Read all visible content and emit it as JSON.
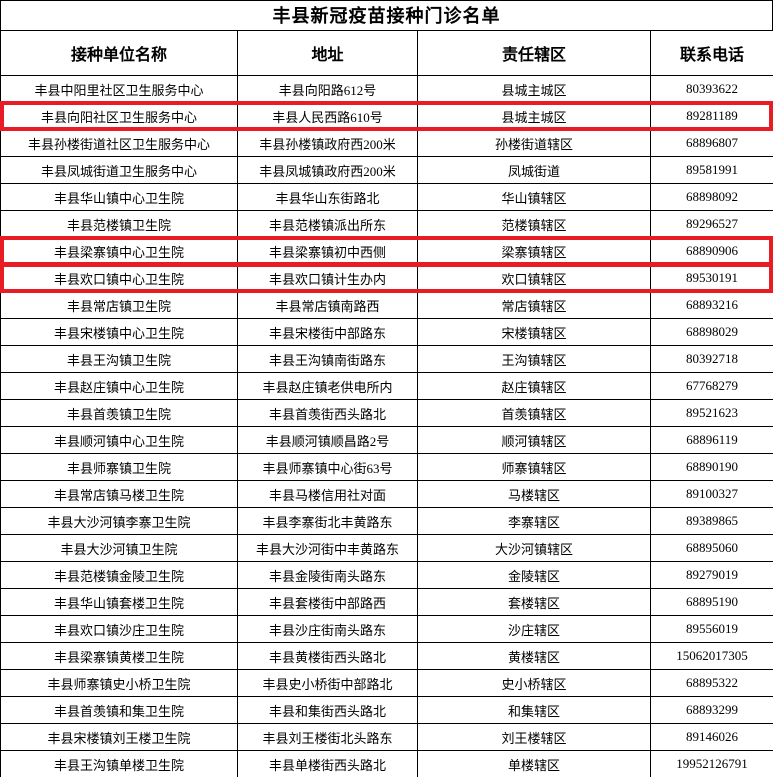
{
  "page": {
    "title": "丰县新冠疫苗接种门诊名单"
  },
  "table": {
    "highlight_color": "#e81c24",
    "columns": [
      "接种单位名称",
      "地址",
      "责任辖区",
      "联系电话"
    ],
    "rows": [
      {
        "unit": "丰县中阳里社区卫生服务中心",
        "address": "丰县向阳路612号",
        "district": "县城主城区",
        "phone": "80393622",
        "highlighted": false
      },
      {
        "unit": "丰县向阳社区卫生服务中心",
        "address": "丰县人民西路610号",
        "district": "县城主城区",
        "phone": "89281189",
        "highlighted": true
      },
      {
        "unit": "丰县孙楼街道社区卫生服务中心",
        "address": "丰县孙楼镇政府西200米",
        "district": "孙楼街道辖区",
        "phone": "68896807",
        "highlighted": false
      },
      {
        "unit": "丰县凤城街道卫生服务中心",
        "address": "丰县凤城镇政府西200米",
        "district": "凤城街道",
        "phone": "89581991",
        "highlighted": false
      },
      {
        "unit": "丰县华山镇中心卫生院",
        "address": "丰县华山东街路北",
        "district": "华山镇辖区",
        "phone": "68898092",
        "highlighted": false
      },
      {
        "unit": "丰县范楼镇卫生院",
        "address": "丰县范楼镇派出所东",
        "district": "范楼镇辖区",
        "phone": "89296527",
        "highlighted": false
      },
      {
        "unit": "丰县梁寨镇中心卫生院",
        "address": "丰县梁寨镇初中西侧",
        "district": "梁寨镇辖区",
        "phone": "68890906",
        "highlighted": true
      },
      {
        "unit": "丰县欢口镇中心卫生院",
        "address": "丰县欢口镇计生办内",
        "district": "欢口镇辖区",
        "phone": "89530191",
        "highlighted": true
      },
      {
        "unit": "丰县常店镇卫生院",
        "address": "丰县常店镇南路西",
        "district": "常店镇辖区",
        "phone": "68893216",
        "highlighted": false
      },
      {
        "unit": "丰县宋楼镇中心卫生院",
        "address": "丰县宋楼街中部路东",
        "district": "宋楼镇辖区",
        "phone": "68898029",
        "highlighted": false
      },
      {
        "unit": "丰县王沟镇卫生院",
        "address": "丰县王沟镇南街路东",
        "district": "王沟镇辖区",
        "phone": "80392718",
        "highlighted": false
      },
      {
        "unit": "丰县赵庄镇中心卫生院",
        "address": "丰县赵庄镇老供电所内",
        "district": "赵庄镇辖区",
        "phone": "67768279",
        "highlighted": false
      },
      {
        "unit": "丰县首羡镇卫生院",
        "address": "丰县首羡街西头路北",
        "district": "首羡镇辖区",
        "phone": "89521623",
        "highlighted": false
      },
      {
        "unit": "丰县顺河镇中心卫生院",
        "address": "丰县顺河镇顺昌路2号",
        "district": "顺河镇辖区",
        "phone": "68896119",
        "highlighted": false
      },
      {
        "unit": "丰县师寨镇卫生院",
        "address": "丰县师寨镇中心街63号",
        "district": "师寨镇辖区",
        "phone": "68890190",
        "highlighted": false
      },
      {
        "unit": "丰县常店镇马楼卫生院",
        "address": "丰县马楼信用社对面",
        "district": "马楼辖区",
        "phone": "89100327",
        "highlighted": false
      },
      {
        "unit": "丰县大沙河镇李寨卫生院",
        "address": "丰县李寨街北丰黄路东",
        "district": "李寨辖区",
        "phone": "89389865",
        "highlighted": false
      },
      {
        "unit": "丰县大沙河镇卫生院",
        "address": "丰县大沙河街中丰黄路东",
        "district": "大沙河镇辖区",
        "phone": "68895060",
        "highlighted": false
      },
      {
        "unit": "丰县范楼镇金陵卫生院",
        "address": "丰县金陵街南头路东",
        "district": "金陵辖区",
        "phone": "89279019",
        "highlighted": false
      },
      {
        "unit": "丰县华山镇套楼卫生院",
        "address": "丰县套楼街中部路西",
        "district": "套楼辖区",
        "phone": "68895190",
        "highlighted": false
      },
      {
        "unit": "丰县欢口镇沙庄卫生院",
        "address": "丰县沙庄街南头路东",
        "district": "沙庄辖区",
        "phone": "89556019",
        "highlighted": false
      },
      {
        "unit": "丰县梁寨镇黄楼卫生院",
        "address": "丰县黄楼街西头路北",
        "district": "黄楼辖区",
        "phone": "15062017305",
        "highlighted": false
      },
      {
        "unit": "丰县师寨镇史小桥卫生院",
        "address": "丰县史小桥街中部路北",
        "district": "史小桥辖区",
        "phone": "68895322",
        "highlighted": false
      },
      {
        "unit": "丰县首羡镇和集卫生院",
        "address": "丰县和集街西头路北",
        "district": "和集辖区",
        "phone": "68893299",
        "highlighted": false
      },
      {
        "unit": "丰县宋楼镇刘王楼卫生院",
        "address": "丰县刘王楼街北头路东",
        "district": "刘王楼辖区",
        "phone": "89146026",
        "highlighted": false
      },
      {
        "unit": "丰县王沟镇单楼卫生院",
        "address": "丰县单楼街西头路北",
        "district": "单楼辖区",
        "phone": "19952126791",
        "highlighted": false
      }
    ]
  }
}
